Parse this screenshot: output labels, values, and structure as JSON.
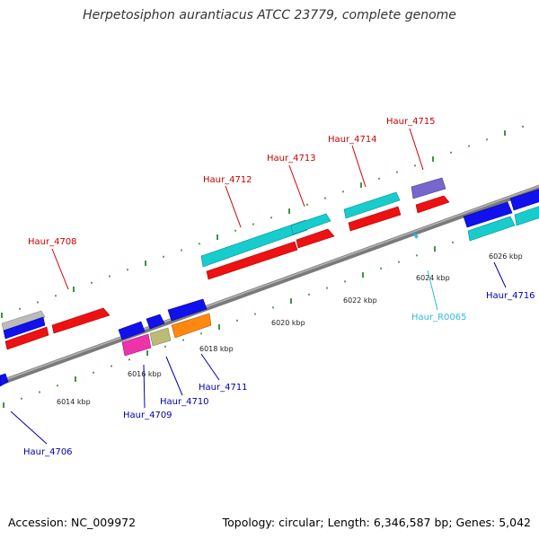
{
  "title": "Herpetosiphon aurantiacus ATCC 23779, complete genome",
  "footer": {
    "accession": "Accession: NC_009972",
    "summary": "Topology: circular; Length: 6,346,587 bp; Genes: 5,042"
  },
  "colors": {
    "forward_label": "#cc0000",
    "reverse_label": "#0000aa",
    "rna_label": "#33bbdd",
    "backbone": "#888888",
    "tick": "#117711"
  },
  "tick_labels": [
    "6014 kbp",
    "6016 kbp",
    "6018 kbp",
    "6020 kbp",
    "6022 kbp",
    "6024 kbp",
    "6026 kbp"
  ],
  "gene_labels": {
    "forward": [
      "Haur_4708",
      "Haur_4712",
      "Haur_4713",
      "Haur_4714",
      "Haur_4715"
    ],
    "reverse": [
      "Haur_4706",
      "Haur_4709",
      "Haur_4710",
      "Haur_4711",
      "Haur_4716"
    ],
    "rna": [
      "Haur_R0065"
    ]
  }
}
